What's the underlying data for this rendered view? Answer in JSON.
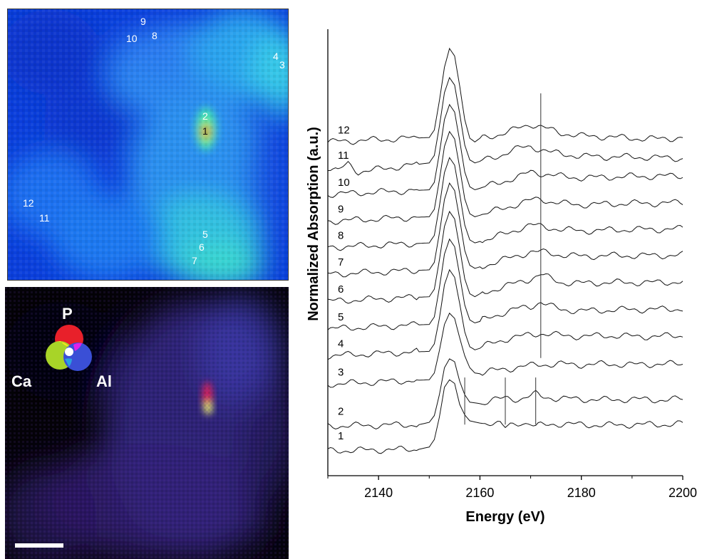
{
  "maps": {
    "top_labels": [
      {
        "text": "9"
      },
      {
        "text": "10"
      },
      {
        "text": "8"
      },
      {
        "text": "4"
      },
      {
        "text": "3"
      },
      {
        "text": "2"
      },
      {
        "text": "1"
      },
      {
        "text": "12"
      },
      {
        "text": "11"
      },
      {
        "text": "5"
      },
      {
        "text": "6"
      },
      {
        "text": "7"
      }
    ],
    "legend": {
      "p": "P",
      "ca": "Ca",
      "al": "Al"
    },
    "colors": {
      "p": "#e8202a",
      "ca": "#a8d428",
      "al": "#3a4fd6",
      "overlap_p_ca": "#f7e61a",
      "overlap_p_al": "#e020e8",
      "overlap_ca_al": "#2aa0e0",
      "center": "#ffffff"
    }
  },
  "chart_data": {
    "type": "line",
    "xlabel": "Energy (eV)",
    "ylabel": "Normalized Absorption (a.u.)",
    "xlim": [
      2130,
      2200
    ],
    "xticks": [
      2140,
      2160,
      2180,
      2200
    ],
    "x_tick_labels": [
      "2140",
      "2160",
      "2180",
      "2200"
    ],
    "series": [
      {
        "name": "1",
        "offset": 0.0,
        "x": [
          2130,
          2148,
          2150,
          2151,
          2152,
          2153,
          2154,
          2155,
          2156,
          2157,
          2158,
          2160,
          2162,
          2164,
          2165,
          2166,
          2168,
          2170,
          2171,
          2172,
          2175,
          2180,
          2185,
          2190,
          2195,
          2200
        ],
        "y": [
          0.0,
          0.02,
          0.05,
          0.15,
          0.45,
          0.85,
          0.95,
          0.9,
          0.62,
          0.48,
          0.4,
          0.37,
          0.38,
          0.36,
          0.3,
          0.34,
          0.38,
          0.36,
          0.32,
          0.34,
          0.36,
          0.35,
          0.34,
          0.35,
          0.35,
          0.36
        ]
      },
      {
        "name": "2",
        "offset": 0.33,
        "x": [
          2130,
          2148,
          2150,
          2151,
          2152,
          2153,
          2154,
          2155,
          2156,
          2157,
          2158,
          2160,
          2162,
          2164,
          2165,
          2166,
          2168,
          2170,
          2171,
          2172,
          2175,
          2180,
          2185,
          2190,
          2195,
          2200
        ],
        "y": [
          0.0,
          0.02,
          0.05,
          0.14,
          0.42,
          0.78,
          0.9,
          0.86,
          0.6,
          0.42,
          0.32,
          0.3,
          0.34,
          0.36,
          0.38,
          0.37,
          0.36,
          0.4,
          0.43,
          0.4,
          0.37,
          0.36,
          0.35,
          0.36,
          0.35,
          0.36
        ]
      },
      {
        "name": "3",
        "offset": 0.89,
        "x": [
          2130,
          2150,
          2151,
          2152,
          2153,
          2154,
          2155,
          2156,
          2157,
          2158,
          2159,
          2160,
          2162,
          2164,
          2166,
          2168,
          2170,
          2172,
          2174,
          2176,
          2180,
          2185,
          2190,
          2195,
          2200
        ],
        "y": [
          0.0,
          0.06,
          0.15,
          0.45,
          0.8,
          0.95,
          0.88,
          0.62,
          0.38,
          0.22,
          0.15,
          0.14,
          0.17,
          0.2,
          0.21,
          0.23,
          0.25,
          0.27,
          0.26,
          0.27,
          0.26,
          0.27,
          0.26,
          0.27,
          0.27
        ]
      },
      {
        "name": "4",
        "offset": 1.27,
        "x": [
          2130,
          2150,
          2151,
          2152,
          2153,
          2154,
          2155,
          2156,
          2157,
          2158,
          2159,
          2160,
          2162,
          2164,
          2166,
          2168,
          2170,
          2172,
          2174,
          2176,
          2180,
          2185,
          2190,
          2195,
          2200
        ],
        "y": [
          0.0,
          0.06,
          0.16,
          0.5,
          0.95,
          1.15,
          1.05,
          0.7,
          0.32,
          0.12,
          0.08,
          0.1,
          0.16,
          0.2,
          0.24,
          0.26,
          0.28,
          0.3,
          0.29,
          0.27,
          0.26,
          0.27,
          0.26,
          0.26,
          0.27
        ]
      },
      {
        "name": "5",
        "offset": 1.63,
        "x": [
          2130,
          2150,
          2151,
          2152,
          2153,
          2154,
          2155,
          2156,
          2157,
          2158,
          2159,
          2160,
          2162,
          2164,
          2166,
          2168,
          2170,
          2172,
          2174,
          2176,
          2180,
          2185,
          2190,
          2195,
          2200
        ],
        "y": [
          0.0,
          0.06,
          0.16,
          0.55,
          1.0,
          1.2,
          1.1,
          0.72,
          0.32,
          0.12,
          0.08,
          0.1,
          0.16,
          0.2,
          0.24,
          0.28,
          0.3,
          0.36,
          0.3,
          0.26,
          0.24,
          0.25,
          0.26,
          0.26,
          0.27
        ]
      },
      {
        "name": "6",
        "offset": 2.0,
        "x": [
          2130,
          2150,
          2151,
          2152,
          2153,
          2154,
          2155,
          2156,
          2157,
          2158,
          2159,
          2160,
          2162,
          2164,
          2166,
          2168,
          2170,
          2172,
          2174,
          2176,
          2180,
          2185,
          2190,
          2195,
          2200
        ],
        "y": [
          0.0,
          0.06,
          0.16,
          0.55,
          1.0,
          1.2,
          1.1,
          0.72,
          0.3,
          0.1,
          0.06,
          0.1,
          0.14,
          0.18,
          0.22,
          0.26,
          0.3,
          0.36,
          0.3,
          0.25,
          0.24,
          0.25,
          0.25,
          0.25,
          0.26
        ]
      },
      {
        "name": "7",
        "offset": 2.36,
        "x": [
          2130,
          2150,
          2151,
          2152,
          2153,
          2154,
          2155,
          2156,
          2157,
          2158,
          2159,
          2160,
          2162,
          2164,
          2166,
          2168,
          2170,
          2172,
          2174,
          2176,
          2180,
          2185,
          2190,
          2195,
          2200
        ],
        "y": [
          0.0,
          0.06,
          0.16,
          0.55,
          1.0,
          1.22,
          1.12,
          0.74,
          0.32,
          0.12,
          0.08,
          0.1,
          0.14,
          0.18,
          0.22,
          0.26,
          0.3,
          0.3,
          0.28,
          0.26,
          0.24,
          0.25,
          0.25,
          0.25,
          0.26
        ]
      },
      {
        "name": "8",
        "offset": 2.72,
        "x": [
          2130,
          2150,
          2151,
          2152,
          2153,
          2154,
          2155,
          2156,
          2157,
          2158,
          2159,
          2160,
          2162,
          2164,
          2166,
          2168,
          2170,
          2172,
          2174,
          2176,
          2180,
          2185,
          2190,
          2195,
          2200
        ],
        "y": [
          0.0,
          0.06,
          0.16,
          0.55,
          1.0,
          1.2,
          1.1,
          0.72,
          0.3,
          0.1,
          0.06,
          0.08,
          0.12,
          0.16,
          0.2,
          0.26,
          0.3,
          0.28,
          0.26,
          0.24,
          0.22,
          0.23,
          0.24,
          0.24,
          0.25
        ]
      },
      {
        "name": "9",
        "offset": 3.07,
        "x": [
          2130,
          2150,
          2151,
          2152,
          2153,
          2154,
          2155,
          2156,
          2157,
          2158,
          2159,
          2160,
          2162,
          2164,
          2166,
          2168,
          2170,
          2172,
          2174,
          2176,
          2180,
          2185,
          2190,
          2195,
          2200
        ],
        "y": [
          0.0,
          0.06,
          0.16,
          0.55,
          1.0,
          1.2,
          1.1,
          0.72,
          0.3,
          0.1,
          0.06,
          0.08,
          0.12,
          0.16,
          0.2,
          0.24,
          0.28,
          0.3,
          0.26,
          0.24,
          0.22,
          0.23,
          0.24,
          0.24,
          0.25
        ]
      },
      {
        "name": "10",
        "offset": 3.43,
        "x": [
          2130,
          2150,
          2151,
          2152,
          2153,
          2154,
          2155,
          2156,
          2157,
          2158,
          2159,
          2160,
          2162,
          2164,
          2166,
          2168,
          2170,
          2172,
          2174,
          2176,
          2180,
          2185,
          2190,
          2195,
          2200
        ],
        "y": [
          0.0,
          0.06,
          0.16,
          0.55,
          1.0,
          1.2,
          1.1,
          0.72,
          0.3,
          0.1,
          0.06,
          0.08,
          0.12,
          0.16,
          0.2,
          0.24,
          0.3,
          0.28,
          0.26,
          0.24,
          0.22,
          0.23,
          0.24,
          0.24,
          0.25
        ]
      },
      {
        "name": "11",
        "offset": 3.79,
        "x": [
          2130,
          2132,
          2134,
          2136,
          2150,
          2151,
          2152,
          2153,
          2154,
          2155,
          2156,
          2157,
          2158,
          2159,
          2160,
          2162,
          2164,
          2166,
          2168,
          2170,
          2172,
          2174,
          2176,
          2180,
          2185,
          2190,
          2195,
          2200
        ],
        "y": [
          0.0,
          -0.05,
          0.05,
          -0.06,
          0.06,
          0.16,
          0.55,
          1.0,
          1.2,
          1.1,
          0.72,
          0.3,
          0.1,
          0.06,
          0.08,
          0.12,
          0.16,
          0.22,
          0.26,
          0.28,
          0.24,
          0.2,
          0.18,
          0.15,
          0.14,
          0.14,
          0.13,
          0.12
        ]
      },
      {
        "name": "12",
        "offset": 4.13,
        "x": [
          2130,
          2150,
          2151,
          2152,
          2153,
          2154,
          2155,
          2156,
          2157,
          2158,
          2159,
          2160,
          2162,
          2164,
          2166,
          2168,
          2170,
          2172,
          2174,
          2176,
          2180,
          2185,
          2190,
          2195,
          2200
        ],
        "y": [
          0.0,
          0.06,
          0.16,
          0.55,
          1.0,
          1.25,
          1.15,
          0.75,
          0.3,
          0.05,
          0.0,
          0.05,
          0.08,
          0.1,
          0.14,
          0.2,
          0.24,
          0.2,
          0.16,
          0.12,
          0.08,
          0.07,
          0.05,
          0.04,
          0.06
        ]
      }
    ],
    "reference_lines": [
      {
        "x": 2172,
        "series_from": "3",
        "series_to": "12"
      },
      {
        "x": 2157,
        "series_from": "1",
        "series_to": "2"
      },
      {
        "x": 2165,
        "series_from": "1",
        "series_to": "2"
      },
      {
        "x": 2171,
        "series_from": "1",
        "series_to": "2"
      }
    ]
  }
}
